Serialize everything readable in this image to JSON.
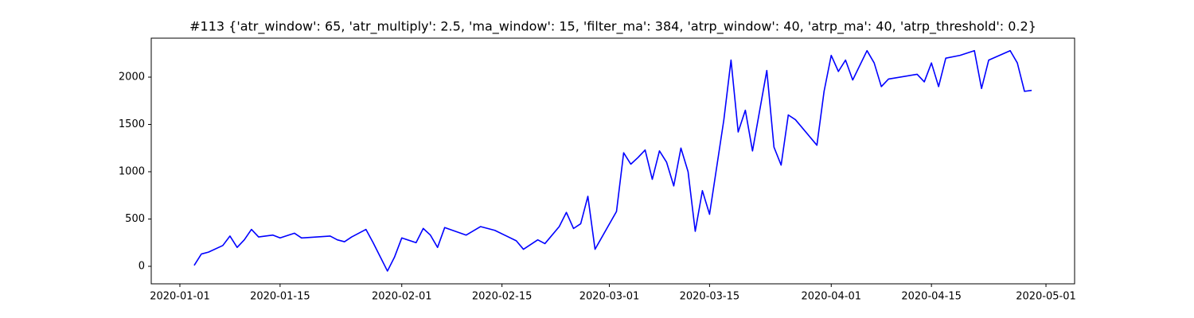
{
  "chart_data": {
    "type": "line",
    "title": "#113 {'atr_window': 65, 'atr_multiply': 2.5, 'ma_window': 15, 'filter_ma': 384, 'atrp_window': 40, 'atrp_ma': 40, 'atrp_threshold': 0.2}",
    "x": [
      "2020-01-03",
      "2020-01-04",
      "2020-01-05",
      "2020-01-07",
      "2020-01-08",
      "2020-01-09",
      "2020-01-10",
      "2020-01-11",
      "2020-01-12",
      "2020-01-14",
      "2020-01-15",
      "2020-01-17",
      "2020-01-18",
      "2020-01-22",
      "2020-01-23",
      "2020-01-24",
      "2020-01-25",
      "2020-01-27",
      "2020-01-28",
      "2020-01-29",
      "2020-01-30",
      "2020-01-31",
      "2020-02-01",
      "2020-02-03",
      "2020-02-04",
      "2020-02-05",
      "2020-02-06",
      "2020-02-07",
      "2020-02-10",
      "2020-02-12",
      "2020-02-14",
      "2020-02-17",
      "2020-02-18",
      "2020-02-20",
      "2020-02-21",
      "2020-02-23",
      "2020-02-24",
      "2020-02-25",
      "2020-02-26",
      "2020-02-27",
      "2020-02-28",
      "2020-03-02",
      "2020-03-03",
      "2020-03-04",
      "2020-03-05",
      "2020-03-06",
      "2020-03-07",
      "2020-03-08",
      "2020-03-09",
      "2020-03-10",
      "2020-03-11",
      "2020-03-12",
      "2020-03-13",
      "2020-03-14",
      "2020-03-15",
      "2020-03-17",
      "2020-03-18",
      "2020-03-19",
      "2020-03-20",
      "2020-03-21",
      "2020-03-23",
      "2020-03-24",
      "2020-03-25",
      "2020-03-26",
      "2020-03-27",
      "2020-03-30",
      "2020-03-31",
      "2020-04-01",
      "2020-04-02",
      "2020-04-03",
      "2020-04-04",
      "2020-04-06",
      "2020-04-07",
      "2020-04-08",
      "2020-04-09",
      "2020-04-13",
      "2020-04-14",
      "2020-04-15",
      "2020-04-16",
      "2020-04-17",
      "2020-04-19",
      "2020-04-21",
      "2020-04-22",
      "2020-04-23",
      "2020-04-26",
      "2020-04-27",
      "2020-04-28",
      "2020-04-29"
    ],
    "series": [
      {
        "color": "#0000ff",
        "values": [
          10,
          130,
          150,
          220,
          320,
          200,
          280,
          390,
          310,
          330,
          300,
          350,
          300,
          320,
          280,
          260,
          310,
          390,
          250,
          100,
          -50,
          100,
          300,
          250,
          400,
          330,
          200,
          410,
          330,
          420,
          380,
          270,
          180,
          280,
          240,
          420,
          570,
          400,
          450,
          740,
          180,
          580,
          1200,
          1080,
          1150,
          1230,
          920,
          1220,
          1100,
          850,
          1250,
          1000,
          370,
          800,
          550,
          1550,
          2180,
          1420,
          1650,
          1220,
          2070,
          1260,
          1070,
          1600,
          1550,
          1280,
          1850,
          2230,
          2060,
          2180,
          1970,
          2280,
          2150,
          1900,
          1980,
          2030,
          1950,
          2150,
          1900,
          2200,
          2230,
          2280,
          1880,
          2180,
          2280,
          2150,
          1850,
          1860
        ]
      }
    ],
    "xlim": [
      "2019-12-28",
      "2020-05-05"
    ],
    "xticks": [
      "2020-01-01",
      "2020-01-15",
      "2020-02-01",
      "2020-02-15",
      "2020-03-01",
      "2020-03-15",
      "2020-04-01",
      "2020-04-15",
      "2020-05-01"
    ],
    "ylim": [
      -185,
      2412
    ],
    "yticks": [
      0,
      500,
      1000,
      1500,
      2000
    ],
    "grid": false
  }
}
